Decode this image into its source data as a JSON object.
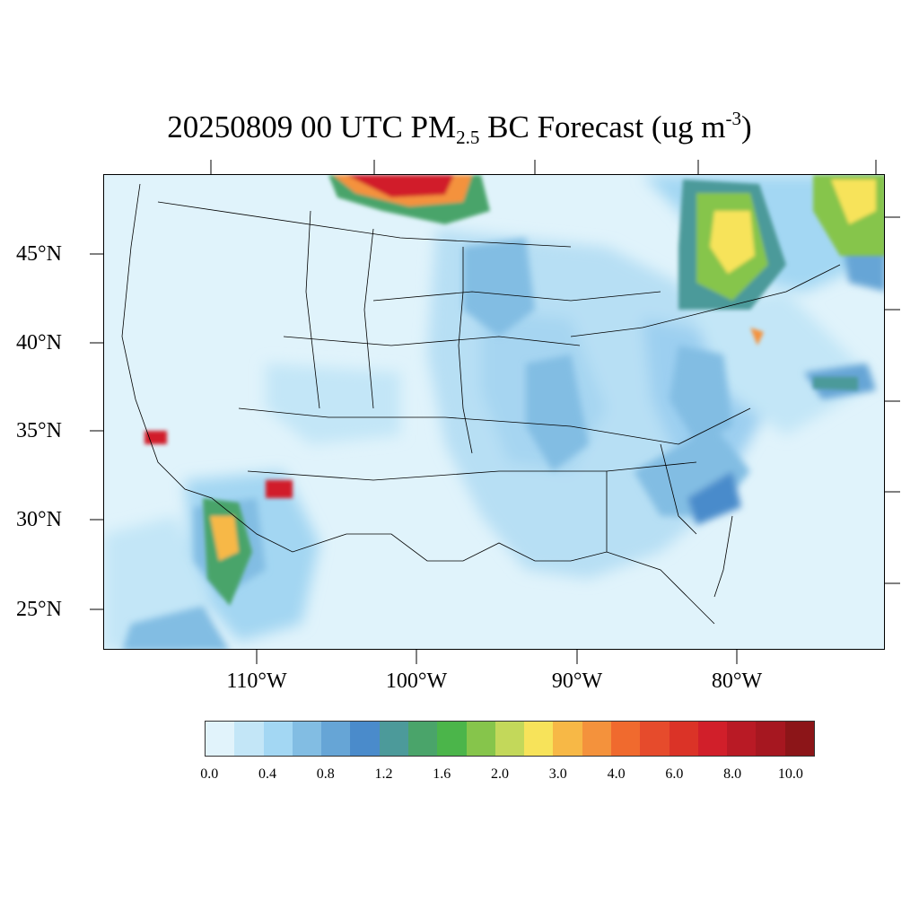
{
  "title": {
    "prefix": "20250809 00 UTC PM",
    "sub": "2.5",
    "middle": " BC Forecast (ug m",
    "sup": "-3",
    "suffix": ")"
  },
  "map": {
    "projection": "lambert-conformal",
    "lat_labels": [
      "45°N",
      "40°N",
      "35°N",
      "30°N",
      "25°N"
    ],
    "lon_labels": [
      "110°W",
      "100°W",
      "90°W",
      "80°W"
    ],
    "background_color": "#e0f3fb",
    "boundary_color": "#000000"
  },
  "colorbar": {
    "colors": [
      "#e1f3fb",
      "#c3e6f7",
      "#a3d7f3",
      "#82bde3",
      "#66a5d6",
      "#4a8bcb",
      "#4c9a9a",
      "#4aa46a",
      "#4bb54a",
      "#86c54b",
      "#c3d85a",
      "#f7e35a",
      "#f7b846",
      "#f4923c",
      "#f06a2e",
      "#e64b2c",
      "#db3327",
      "#d11f2a",
      "#b91a25",
      "#a61720",
      "#8c1518"
    ],
    "tick_labels": [
      "0.0",
      "0.4",
      "0.8",
      "1.2",
      "1.6",
      "2.0",
      "3.0",
      "4.0",
      "6.0",
      "8.0",
      "10.0"
    ]
  }
}
